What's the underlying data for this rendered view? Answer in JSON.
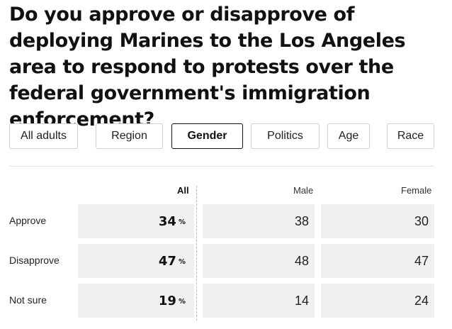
{
  "question": "Do you approve or disapprove of deploying Marines to the Los Angeles area to respond to protests over the federal government's immigration enforcement?",
  "tabs": [
    {
      "label": "All adults",
      "active": false
    },
    {
      "label": "Region",
      "active": false
    },
    {
      "label": "Gender",
      "active": true
    },
    {
      "label": "Politics",
      "active": false
    },
    {
      "label": "Age",
      "active": false
    },
    {
      "label": "Race",
      "active": false
    }
  ],
  "table": {
    "columns": {
      "all": "All",
      "male": "Male",
      "female": "Female"
    },
    "pct_symbol": "%",
    "rows": [
      {
        "label": "Approve",
        "all": "34",
        "male": "38",
        "female": "30"
      },
      {
        "label": "Disapprove",
        "all": "47",
        "male": "48",
        "female": "47"
      },
      {
        "label": "Not sure",
        "all": "19",
        "male": "14",
        "female": "24"
      }
    ]
  }
}
